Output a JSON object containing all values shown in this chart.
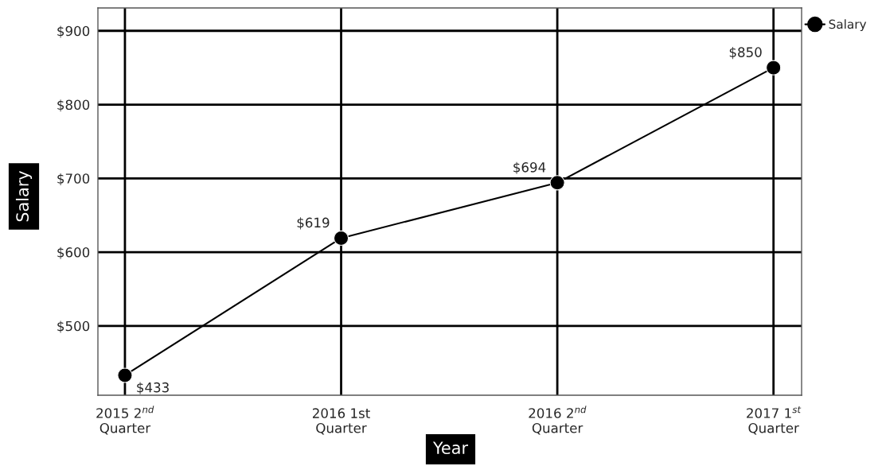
{
  "chart_data": {
    "type": "line",
    "xlabel": "Year",
    "ylabel": "Salary",
    "categories": [
      "2015 2$^{nd}$\nQuarter",
      "2016 1st\nQuarter",
      "2016 2$^{nd}$\nQuarter",
      "2017 1$^{st}$\nQuarter"
    ],
    "series": [
      {
        "name": "Salary",
        "color": "#000000",
        "values": [
          433,
          619,
          694,
          850
        ],
        "value_labels": [
          "$433",
          "$619",
          "$694",
          "$850"
        ]
      }
    ],
    "ylim": [
      406,
      931
    ],
    "yticks": [
      {
        "value": 500,
        "label": "$500"
      },
      {
        "value": 600,
        "label": "$600"
      },
      {
        "value": 700,
        "label": "$700"
      },
      {
        "value": 800,
        "label": "$800"
      },
      {
        "value": 900,
        "label": "$900"
      }
    ],
    "grid": true,
    "legend": "right",
    "marker": "circle",
    "line_style": "solid"
  }
}
